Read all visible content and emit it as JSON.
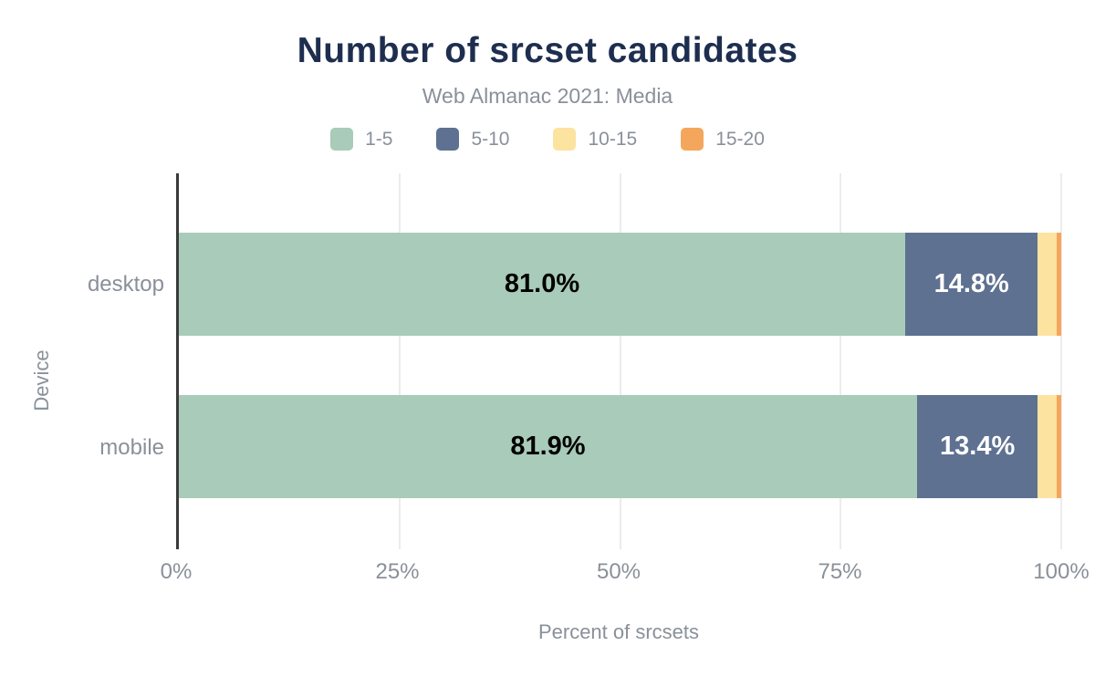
{
  "header": {
    "title": "Number of srcset candidates",
    "subtitle": "Web Almanac 2021: Media"
  },
  "legend": {
    "items": [
      {
        "label": "1-5",
        "color": "#a9cbb9"
      },
      {
        "label": "5-10",
        "color": "#5e7191"
      },
      {
        "label": "10-15",
        "color": "#fce3a0"
      },
      {
        "label": "15-20",
        "color": "#f4a75c"
      }
    ]
  },
  "chart_data": {
    "type": "bar",
    "orientation": "horizontal",
    "stacked": true,
    "normalized_to_100_width": true,
    "title": "Number of srcset candidates",
    "subtitle": "Web Almanac 2021: Media",
    "xlabel": "Percent of srcsets",
    "ylabel": "Device",
    "xlim": [
      0,
      100
    ],
    "grid": true,
    "legend_position": "top",
    "categories": [
      "desktop",
      "mobile"
    ],
    "series": [
      {
        "name": "1-5",
        "color": "#a9cbb9",
        "values": [
          81.0,
          81.9
        ],
        "labels": [
          "81.0%",
          "81.9%"
        ],
        "label_color": "#000000"
      },
      {
        "name": "5-10",
        "color": "#5e7191",
        "values": [
          14.8,
          13.4
        ],
        "labels": [
          "14.8%",
          "13.4%"
        ],
        "label_color": "#ffffff"
      },
      {
        "name": "10-15",
        "color": "#fce3a0",
        "values": [
          2.1,
          2.1
        ],
        "labels": [
          "",
          ""
        ],
        "label_color": "#000000"
      },
      {
        "name": "15-20",
        "color": "#f4a75c",
        "values": [
          0.5,
          0.5
        ],
        "labels": [
          "",
          ""
        ],
        "label_color": "#000000"
      }
    ]
  },
  "axes": {
    "x_title": "Percent of srcsets",
    "y_title": "Device",
    "x_ticks": [
      {
        "label": "0%",
        "pos": 0
      },
      {
        "label": "25%",
        "pos": 25
      },
      {
        "label": "50%",
        "pos": 50
      },
      {
        "label": "75%",
        "pos": 75
      },
      {
        "label": "100%",
        "pos": 100
      }
    ],
    "y_ticks": [
      "desktop",
      "mobile"
    ]
  },
  "colors": {
    "title": "#1e2e4f",
    "muted_text": "#8a909a",
    "gridline": "#ececec",
    "axis_line": "#3a3a3a",
    "background": "#ffffff"
  }
}
